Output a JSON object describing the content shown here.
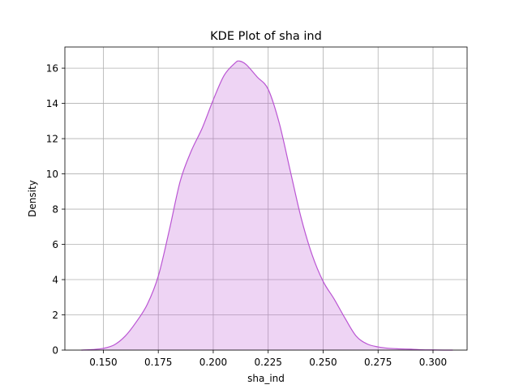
{
  "chart_data": {
    "type": "area",
    "title": "KDE Plot of sha ind",
    "xlabel": "sha_ind",
    "ylabel": "Density",
    "xlim": [
      0.1325,
      0.3155
    ],
    "ylim": [
      0,
      17.2
    ],
    "grid": true,
    "legend": "none",
    "color": "#BA55D3",
    "fill_opacity": 0.25,
    "x_ticks": [
      {
        "value": 0.15,
        "label": "0.150"
      },
      {
        "value": 0.175,
        "label": "0.175"
      },
      {
        "value": 0.2,
        "label": "0.200"
      },
      {
        "value": 0.225,
        "label": "0.225"
      },
      {
        "value": 0.25,
        "label": "0.250"
      },
      {
        "value": 0.275,
        "label": "0.275"
      },
      {
        "value": 0.3,
        "label": "0.300"
      }
    ],
    "y_ticks": [
      {
        "value": 0,
        "label": "0"
      },
      {
        "value": 2,
        "label": "2"
      },
      {
        "value": 4,
        "label": "4"
      },
      {
        "value": 6,
        "label": "6"
      },
      {
        "value": 8,
        "label": "8"
      },
      {
        "value": 10,
        "label": "10"
      },
      {
        "value": 12,
        "label": "12"
      },
      {
        "value": 14,
        "label": "14"
      },
      {
        "value": 16,
        "label": "16"
      }
    ],
    "series": [
      {
        "x": [
          0.14,
          0.145,
          0.15,
          0.155,
          0.16,
          0.165,
          0.17,
          0.175,
          0.18,
          0.185,
          0.19,
          0.195,
          0.2,
          0.205,
          0.21,
          0.212,
          0.215,
          0.22,
          0.225,
          0.23,
          0.235,
          0.24,
          0.245,
          0.25,
          0.255,
          0.26,
          0.265,
          0.27,
          0.275,
          0.28,
          0.285,
          0.29,
          0.295,
          0.3,
          0.305,
          0.309
        ],
        "y": [
          0.0,
          0.03,
          0.1,
          0.3,
          0.8,
          1.6,
          2.6,
          4.2,
          6.8,
          9.6,
          11.3,
          12.6,
          14.2,
          15.6,
          16.3,
          16.4,
          16.2,
          15.5,
          14.8,
          12.9,
          10.2,
          7.5,
          5.4,
          3.9,
          2.9,
          1.8,
          0.8,
          0.35,
          0.18,
          0.1,
          0.07,
          0.05,
          0.02,
          0.01,
          0.0,
          0.0
        ]
      }
    ]
  }
}
